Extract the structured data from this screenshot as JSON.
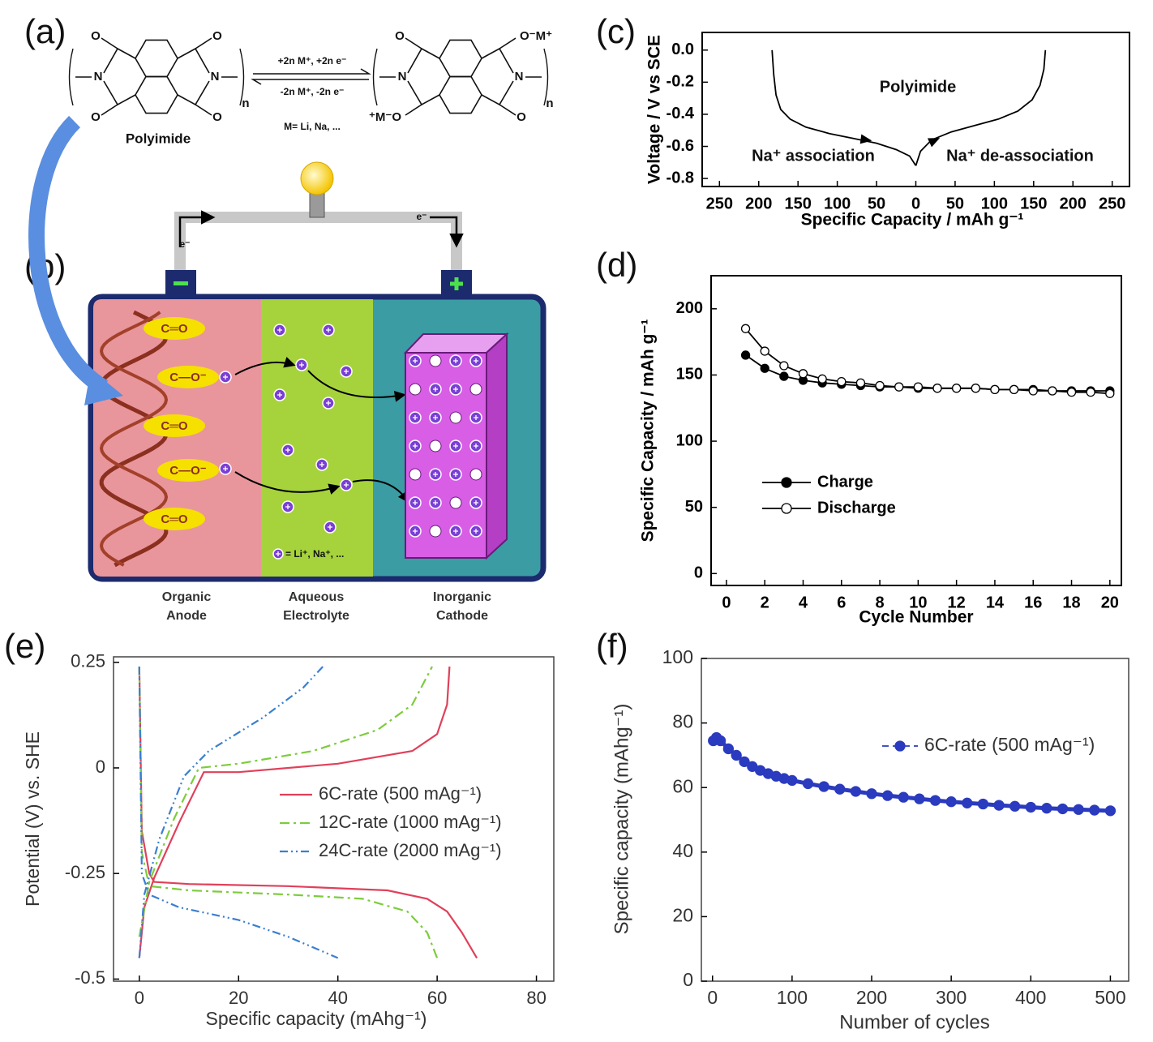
{
  "figure": {
    "panel_labels": [
      "(a)",
      "(b)",
      "(c)",
      "(d)",
      "(e)",
      "(f)"
    ],
    "scheme": {
      "reactant_name": "Polyimide",
      "forward": "+2n M⁺, +2n e⁻",
      "reverse": "-2n M⁺, -2n e⁻",
      "metals": "M= Li, Na, ...",
      "left_atoms": [
        "O",
        "O",
        "N",
        "N",
        "O",
        "O",
        "n"
      ],
      "right_atoms": [
        "O",
        "O⁻M⁺",
        "N",
        "N",
        "⁺M⁻O",
        "O",
        "n"
      ]
    },
    "battery": {
      "electron_labels": [
        "e⁻",
        "e⁻"
      ],
      "groups": [
        "C═O",
        "C—O⁻",
        "C═O",
        "C—O⁻",
        "C═O"
      ],
      "ion_key": "= Li⁺, Na⁺, ...",
      "section_labels": [
        [
          "Organic",
          "Anode"
        ],
        [
          "Aqueous",
          "Electrolyte"
        ],
        [
          "Inorganic",
          "Cathode"
        ]
      ]
    }
  },
  "chart_data": [
    {
      "type": "line",
      "xlabel": "Specific Capacity / mAh g⁻¹",
      "ylabel": "Voltage / V vs SCE",
      "annotations": [
        "Polyimide",
        "Na⁺ association",
        "Na⁺ de-association"
      ],
      "xlim": [
        -272,
        272
      ],
      "ylim": [
        -0.85,
        0.11
      ],
      "xticks": [
        {
          "value": -250,
          "label": "250"
        },
        {
          "value": -200,
          "label": "200"
        },
        {
          "value": -150,
          "label": "150"
        },
        {
          "value": -100,
          "label": "100"
        },
        {
          "value": -50,
          "label": "50"
        },
        0,
        50,
        100,
        150,
        200,
        250
      ],
      "yticks": [
        {
          "value": 0,
          "label": "0.0"
        },
        -0.2,
        -0.4,
        -0.6,
        -0.8
      ],
      "series": [
        {
          "color": "#000000",
          "line_style": "solid",
          "x": [
            -183,
            -181,
            -178,
            -172,
            -160,
            -140,
            -110,
            -80,
            -50,
            -25,
            -8,
            0
          ],
          "values": [
            0,
            -0.15,
            -0.28,
            -0.37,
            -0.43,
            -0.48,
            -0.52,
            -0.55,
            -0.58,
            -0.62,
            -0.66,
            -0.72
          ]
        },
        {
          "color": "#000000",
          "line_style": "solid",
          "x": [
            0,
            6,
            20,
            45,
            75,
            105,
            130,
            148,
            158,
            163,
            165
          ],
          "values": [
            -0.72,
            -0.63,
            -0.56,
            -0.51,
            -0.47,
            -0.43,
            -0.38,
            -0.31,
            -0.22,
            -0.12,
            0
          ]
        }
      ]
    },
    {
      "type": "line",
      "markers": true,
      "xlabel": "Cycle Number",
      "ylabel": "Specific Capacity / mAh g⁻¹",
      "xlim": [
        -0.8,
        20.6
      ],
      "ylim": [
        -9,
        225
      ],
      "xticks": [
        0,
        2,
        4,
        6,
        8,
        10,
        12,
        14,
        16,
        18,
        20
      ],
      "yticks": [
        0,
        50,
        100,
        150,
        200
      ],
      "x": [
        1,
        2,
        3,
        4,
        5,
        6,
        7,
        8,
        9,
        10,
        11,
        12,
        13,
        14,
        15,
        16,
        17,
        18,
        19,
        20
      ],
      "series": [
        {
          "name": "Charge",
          "color": "#000000",
          "marker_fill": "#000000",
          "line_style": "solid",
          "values": [
            165,
            155,
            149,
            146,
            144,
            143,
            142,
            141,
            141,
            140,
            140,
            140,
            140,
            139,
            139,
            139,
            138,
            138,
            138,
            138
          ]
        },
        {
          "name": "Discharge",
          "color": "#000000",
          "marker_fill": "#ffffff",
          "line_style": "solid",
          "values": [
            185,
            168,
            157,
            151,
            147,
            145,
            144,
            142,
            141,
            141,
            140,
            140,
            140,
            139,
            139,
            138,
            138,
            137,
            137,
            136
          ]
        }
      ]
    },
    {
      "type": "line",
      "xlabel": "Specific capacity (mAhg⁻¹)",
      "ylabel": "Potential (V) vs. SHE",
      "xlim": [
        -5.2,
        83.5
      ],
      "ylim": [
        -0.505,
        0.263
      ],
      "xticks": [
        0,
        20,
        40,
        60,
        80
      ],
      "yticks": [
        0.25,
        0,
        -0.25,
        -0.5
      ],
      "series": [
        {
          "name": "6C-rate (500 mAg⁻¹)",
          "color": "#e0405a",
          "line_style": "solid",
          "x": [
            0,
            0.5,
            2,
            3,
            10,
            30,
            50,
            58,
            62,
            65,
            68,
            null,
            0,
            1,
            3,
            8,
            13,
            20,
            40,
            55,
            60,
            62,
            62.5
          ],
          "values": [
            0.24,
            -0.15,
            -0.25,
            -0.27,
            -0.275,
            -0.28,
            -0.29,
            -0.31,
            -0.34,
            -0.39,
            -0.45,
            null,
            -0.45,
            -0.33,
            -0.26,
            -0.13,
            -0.01,
            -0.01,
            0.01,
            0.04,
            0.08,
            0.15,
            0.24
          ]
        },
        {
          "name": "12C-rate (1000 mAg⁻¹)",
          "color": "#7ccc3c",
          "line_style": "dash-dot",
          "x": [
            0,
            0.5,
            2,
            10,
            30,
            45,
            54,
            58,
            60,
            null,
            0,
            2,
            7,
            12,
            20,
            35,
            48,
            55,
            59
          ],
          "values": [
            0.24,
            -0.2,
            -0.28,
            -0.29,
            -0.3,
            -0.31,
            -0.34,
            -0.39,
            -0.45,
            null,
            -0.4,
            -0.27,
            -0.12,
            0,
            0.01,
            0.04,
            0.09,
            0.15,
            0.24
          ]
        },
        {
          "name": "24C-rate (2000 mAg⁻¹)",
          "color": "#3a7fd0",
          "line_style": "dash-dot-dot",
          "x": [
            0,
            0.5,
            2,
            8,
            20,
            30,
            36,
            40,
            null,
            0,
            1,
            4,
            9,
            14,
            25,
            33,
            37
          ],
          "values": [
            0.24,
            -0.25,
            -0.3,
            -0.33,
            -0.36,
            -0.4,
            -0.43,
            -0.45,
            null,
            -0.45,
            -0.3,
            -0.17,
            -0.02,
            0.04,
            0.12,
            0.19,
            0.24
          ]
        }
      ]
    },
    {
      "type": "line",
      "markers": true,
      "xlabel": "Number of cycles",
      "ylabel": "Specific capacity (mAhg⁻¹)",
      "xlim": [
        -14,
        523
      ],
      "ylim": [
        0,
        100
      ],
      "xticks": [
        0,
        100,
        200,
        300,
        400,
        500
      ],
      "yticks": [
        0,
        20,
        40,
        60,
        80,
        100
      ],
      "x": [
        1,
        5,
        10,
        20,
        30,
        40,
        50,
        60,
        70,
        80,
        90,
        100,
        120,
        140,
        160,
        180,
        200,
        220,
        240,
        260,
        280,
        300,
        320,
        340,
        360,
        380,
        400,
        420,
        440,
        460,
        480,
        500
      ],
      "series": [
        {
          "name": "6C-rate (500 mAg⁻¹)",
          "color": "#2b3bbf",
          "marker_fill": "#2b3bbf",
          "line_style": "dashed",
          "values": [
            74.5,
            75.5,
            74.5,
            72,
            70,
            68,
            66.5,
            65.3,
            64.3,
            63.5,
            62.8,
            62.2,
            61.2,
            60.3,
            59.5,
            58.8,
            58.1,
            57.5,
            57,
            56.5,
            56,
            55.6,
            55.2,
            54.9,
            54.5,
            54.2,
            53.9,
            53.6,
            53.4,
            53.2,
            53,
            52.8
          ]
        }
      ]
    }
  ]
}
